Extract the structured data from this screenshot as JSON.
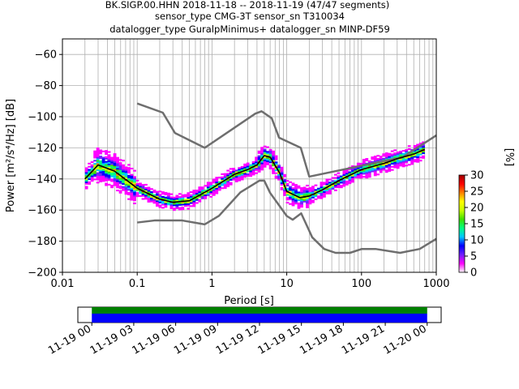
{
  "chart_data": {
    "type": "heatmap",
    "title_lines": [
      "BK.SIGP.00.HHN   2018-11-18 -- 2018-11-19  (47/47 segments)",
      "sensor_type CMG-3T sensor_sn T310034",
      "datalogger_type GuralpMinimus+ datalogger_sn MINP-DF59"
    ],
    "xlabel": "Period [s]",
    "ylabel": "Power [m²/s⁴/Hz] [dB]",
    "xscale": "log",
    "xlim": [
      0.01,
      1000
    ],
    "ylim": [
      -200,
      -50
    ],
    "x_ticks": [
      0.01,
      0.1,
      1,
      10,
      100,
      1000
    ],
    "x_tick_labels": [
      "0.01",
      "0.1",
      "1",
      "10",
      "100",
      "1000"
    ],
    "y_ticks": [
      -200,
      -180,
      -160,
      -140,
      -120,
      -100,
      -80,
      -60
    ],
    "y_tick_labels": [
      "−200",
      "−180",
      "−160",
      "−140",
      "−120",
      "−100",
      "−80",
      "−60"
    ],
    "grid": true,
    "colorbar": {
      "label": "[%]",
      "range": [
        0,
        30
      ],
      "ticks": [
        0,
        5,
        10,
        15,
        20,
        25,
        30
      ],
      "colormap": [
        "#ffffff",
        "#ff00ff",
        "#7020ff",
        "#0000ff",
        "#00c8ff",
        "#00ff80",
        "#40e000",
        "#c8ff00",
        "#ffff00",
        "#ff8000",
        "#ff0000",
        "#a00000"
      ]
    },
    "mode_curve": {
      "periods": [
        0.02,
        0.03,
        0.05,
        0.1,
        0.2,
        0.3,
        0.5,
        1,
        2,
        3,
        4,
        5,
        6,
        8,
        10,
        15,
        20,
        30,
        50,
        100,
        200,
        300,
        500,
        700
      ],
      "values": [
        -140,
        -131,
        -135,
        -146,
        -153,
        -155,
        -154,
        -146,
        -137,
        -134,
        -131,
        -125,
        -126,
        -136,
        -148,
        -152,
        -151,
        -147,
        -141,
        -134,
        -130,
        -127,
        -124,
        -121
      ]
    },
    "nhnm": {
      "periods": [
        0.1,
        0.22,
        0.32,
        0.8,
        3.8,
        4.6,
        6.3,
        7.9,
        15.4,
        20,
        354.8,
        1000
      ],
      "values": [
        -91.5,
        -97.4,
        -110.5,
        -120,
        -98,
        -96.5,
        -101,
        -113.5,
        -120,
        -138.5,
        -126,
        -112
      ]
    },
    "nlnm": {
      "periods": [
        0.1,
        0.17,
        0.4,
        0.8,
        1.24,
        2.4,
        4.3,
        5,
        6,
        10,
        12,
        15.6,
        21.9,
        31.6,
        45,
        70,
        101,
        154,
        328,
        600,
        1000
      ],
      "values": [
        -168,
        -166.7,
        -166.7,
        -169.2,
        -163.7,
        -148.6,
        -141.1,
        -141.1,
        -149,
        -163.8,
        -166.2,
        -162.1,
        -177.5,
        -185,
        -187.5,
        -187.5,
        -185,
        -185,
        -187.5,
        -185,
        -178.5
      ]
    },
    "data_coverage": {
      "tick_labels": [
        "11-19 00",
        "11-19 03",
        "11-19 06",
        "11-19 09",
        "11-19 12",
        "11-19 15",
        "11-19 18",
        "11-19 21",
        "11-20 00"
      ],
      "range_hours": [
        -1,
        25
      ],
      "covered_hours": [
        0,
        24
      ],
      "bar_colors": [
        "#008000",
        "#0000ff"
      ]
    }
  }
}
